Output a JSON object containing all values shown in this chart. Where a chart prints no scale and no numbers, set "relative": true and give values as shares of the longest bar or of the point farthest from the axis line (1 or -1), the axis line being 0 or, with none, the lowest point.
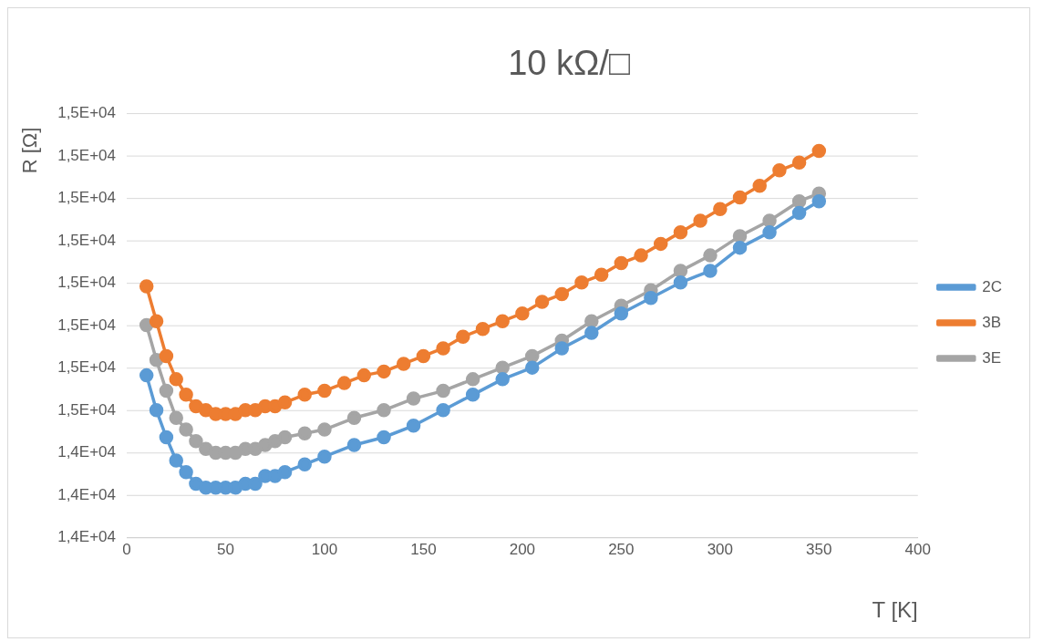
{
  "chart_data": {
    "type": "line",
    "title": "10 kΩ/□",
    "xlabel": "T [K]",
    "ylabel": "R [Ω]",
    "relative": true,
    "grid": "y",
    "annotations": [
      "1,5E+04",
      "1,5E+04",
      "1,5E+04",
      "1,5E+04",
      "1,5E+04",
      "1,5E+04",
      "1,5E+04",
      "1,5E+04",
      "1,4E+04",
      "1,4E+04",
      "1,4E+04"
    ],
    "xlim": [
      0,
      400
    ],
    "xticks": [
      0,
      50,
      100,
      150,
      200,
      250,
      300,
      350,
      400
    ],
    "legend": "right",
    "marker": "circle",
    "line_style": "solid",
    "series": [
      {
        "name": "2C",
        "color": "#5b9bd5",
        "x": [
          10,
          15,
          20,
          25,
          30,
          35,
          40,
          45,
          50,
          55,
          60,
          65,
          70,
          75,
          80,
          90,
          100,
          115,
          130,
          145,
          160,
          175,
          190,
          205,
          220,
          235,
          250,
          265,
          280,
          295,
          310,
          325,
          340,
          350
        ],
        "values": [
          0.42,
          0.33,
          0.26,
          0.2,
          0.17,
          0.14,
          0.13,
          0.13,
          0.13,
          0.13,
          0.14,
          0.14,
          0.16,
          0.16,
          0.17,
          0.19,
          0.21,
          0.24,
          0.26,
          0.29,
          0.33,
          0.37,
          0.41,
          0.44,
          0.49,
          0.53,
          0.58,
          0.62,
          0.66,
          0.69,
          0.75,
          0.79,
          0.84,
          0.87
        ]
      },
      {
        "name": "3B",
        "color": "#ed7d31",
        "x": [
          10,
          15,
          20,
          25,
          30,
          35,
          40,
          45,
          50,
          55,
          60,
          65,
          70,
          75,
          80,
          90,
          100,
          110,
          120,
          130,
          140,
          150,
          160,
          170,
          180,
          190,
          200,
          210,
          220,
          230,
          240,
          250,
          260,
          270,
          280,
          290,
          300,
          310,
          320,
          330,
          340,
          350
        ],
        "values": [
          0.65,
          0.56,
          0.47,
          0.41,
          0.37,
          0.34,
          0.33,
          0.32,
          0.32,
          0.32,
          0.33,
          0.33,
          0.34,
          0.34,
          0.35,
          0.37,
          0.38,
          0.4,
          0.42,
          0.43,
          0.45,
          0.47,
          0.49,
          0.52,
          0.54,
          0.56,
          0.58,
          0.61,
          0.63,
          0.66,
          0.68,
          0.71,
          0.73,
          0.76,
          0.79,
          0.82,
          0.85,
          0.88,
          0.91,
          0.95,
          0.97,
          1
        ]
      },
      {
        "name": "3E",
        "color": "#a5a5a5",
        "x": [
          10,
          15,
          20,
          25,
          30,
          35,
          40,
          45,
          50,
          55,
          60,
          65,
          70,
          75,
          80,
          90,
          100,
          115,
          130,
          145,
          160,
          175,
          190,
          205,
          220,
          235,
          250,
          265,
          280,
          295,
          310,
          325,
          340,
          350
        ],
        "values": [
          0.55,
          0.46,
          0.38,
          0.31,
          0.28,
          0.25,
          0.23,
          0.22,
          0.22,
          0.22,
          0.23,
          0.23,
          0.24,
          0.25,
          0.26,
          0.27,
          0.28,
          0.31,
          0.33,
          0.36,
          0.38,
          0.41,
          0.44,
          0.47,
          0.51,
          0.56,
          0.6,
          0.64,
          0.69,
          0.73,
          0.78,
          0.82,
          0.87,
          0.89
        ]
      }
    ]
  }
}
